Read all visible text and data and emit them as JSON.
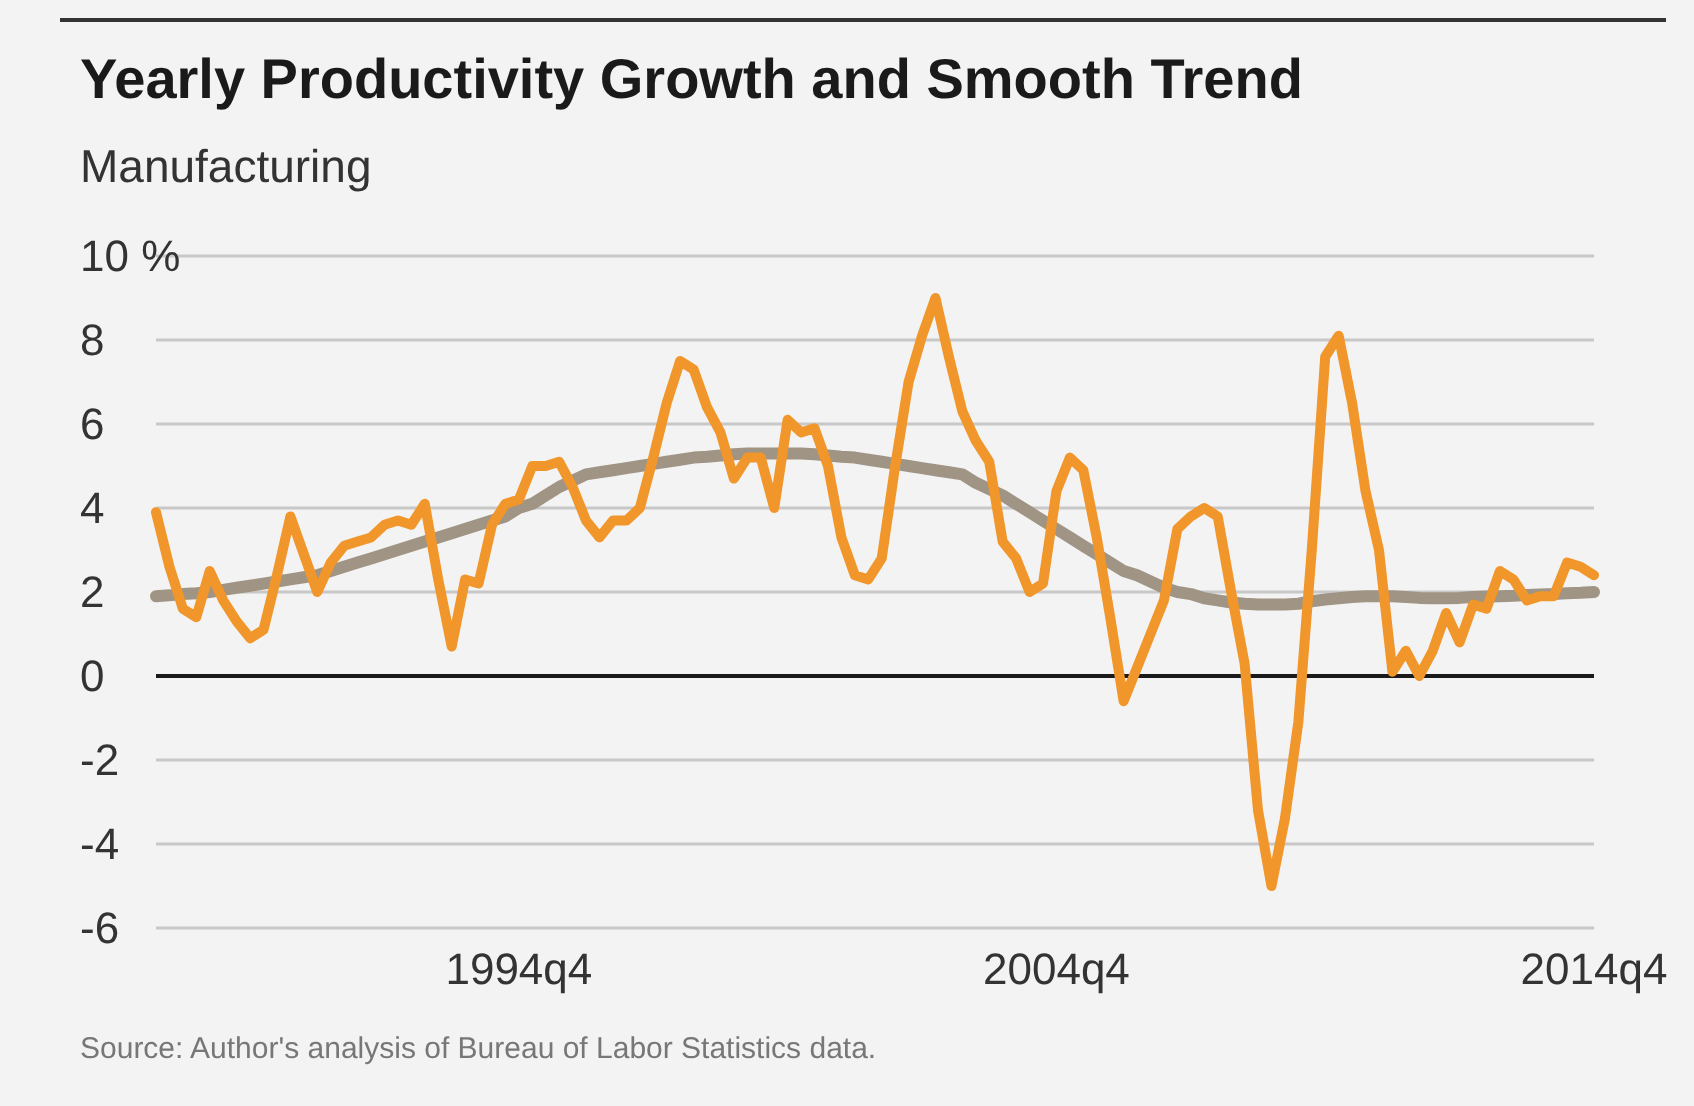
{
  "chart_data": {
    "type": "line",
    "title": "Yearly Productivity Growth and Smooth Trend",
    "subtitle": "Manufacturing",
    "annotations": [
      "Source: Author's analysis of Bureau of Labor Statistics data."
    ],
    "categories": [
      null,
      null,
      null,
      null,
      null,
      null,
      null,
      null,
      null,
      null,
      null,
      null,
      null,
      null,
      null,
      null,
      null,
      null,
      null,
      null,
      null,
      null,
      null,
      null,
      null,
      null,
      null,
      "1994q4",
      null,
      null,
      null,
      null,
      null,
      null,
      null,
      null,
      null,
      null,
      null,
      null,
      null,
      null,
      null,
      null,
      null,
      null,
      null,
      null,
      null,
      null,
      null,
      null,
      null,
      null,
      null,
      null,
      null,
      null,
      null,
      null,
      null,
      null,
      null,
      null,
      null,
      null,
      null,
      "2004q4",
      null,
      null,
      null,
      null,
      null,
      null,
      null,
      null,
      null,
      null,
      null,
      null,
      null,
      null,
      null,
      null,
      null,
      null,
      null,
      null,
      null,
      null,
      null,
      null,
      null,
      null,
      null,
      null,
      null,
      null,
      null,
      null,
      null,
      null,
      null,
      null,
      null,
      null,
      null,
      "2014q4"
    ],
    "ylim": [
      -6,
      10
    ],
    "yticks": [
      {
        "value": 10,
        "label": "10 %"
      },
      8,
      6,
      4,
      2,
      0,
      -2,
      -4,
      -6
    ],
    "grid": "y",
    "marker": "none",
    "line_style": "solid",
    "ref_lines": [
      {
        "axis": "y",
        "value": 0,
        "color": "#1a1a1a"
      }
    ],
    "series": [
      {
        "color": "#a09484",
        "values": [
          1.9,
          1.92,
          1.95,
          1.97,
          2.0,
          2.05,
          2.1,
          2.15,
          2.2,
          2.25,
          2.3,
          2.35,
          2.4,
          2.5,
          2.6,
          2.7,
          2.8,
          2.9,
          3.0,
          3.1,
          3.2,
          3.3,
          3.4,
          3.5,
          3.6,
          3.7,
          3.8,
          4.0,
          4.1,
          4.3,
          4.5,
          4.65,
          4.8,
          4.85,
          4.9,
          4.95,
          5.0,
          5.05,
          5.1,
          5.15,
          5.2,
          5.22,
          5.25,
          5.28,
          5.3,
          5.3,
          5.3,
          5.3,
          5.3,
          5.28,
          5.25,
          5.22,
          5.2,
          5.15,
          5.1,
          5.05,
          5.0,
          4.95,
          4.9,
          4.85,
          4.8,
          4.6,
          4.45,
          4.3,
          4.1,
          3.9,
          3.7,
          3.5,
          3.3,
          3.1,
          2.9,
          2.7,
          2.5,
          2.4,
          2.25,
          2.1,
          2.0,
          1.95,
          1.85,
          1.8,
          1.75,
          1.72,
          1.7,
          1.7,
          1.7,
          1.72,
          1.78,
          1.82,
          1.85,
          1.88,
          1.9,
          1.9,
          1.9,
          1.88,
          1.86,
          1.85,
          1.85,
          1.86,
          1.88,
          1.89,
          1.9,
          1.91,
          1.93,
          1.94,
          1.95,
          1.97,
          1.98,
          2.0
        ]
      },
      {
        "color": "#f0962a",
        "values": [
          3.9,
          2.6,
          1.6,
          1.4,
          2.5,
          1.8,
          1.3,
          0.9,
          1.1,
          2.4,
          3.8,
          2.9,
          2.0,
          2.7,
          3.1,
          3.2,
          3.3,
          3.6,
          3.7,
          3.6,
          4.1,
          2.3,
          0.7,
          2.3,
          2.2,
          3.6,
          4.1,
          4.2,
          5.0,
          5.0,
          5.1,
          4.5,
          3.7,
          3.3,
          3.7,
          3.7,
          4.0,
          5.2,
          6.5,
          7.5,
          7.3,
          6.4,
          5.8,
          4.7,
          5.2,
          5.2,
          4.0,
          6.1,
          5.8,
          5.9,
          5.0,
          3.3,
          2.4,
          2.3,
          2.8,
          5.0,
          7.0,
          8.1,
          9.0,
          7.6,
          6.3,
          5.6,
          5.1,
          3.2,
          2.8,
          2.0,
          2.2,
          4.4,
          5.2,
          4.9,
          3.3,
          1.4,
          -0.6,
          0.2,
          1.0,
          1.8,
          3.5,
          3.8,
          4.0,
          3.8,
          2.0,
          0.3,
          -3.2,
          -5.0,
          -3.4,
          -1.1,
          3.0,
          7.6,
          8.1,
          6.5,
          4.4,
          3.0,
          0.1,
          0.6,
          0.0,
          0.6,
          1.5,
          0.8,
          1.7,
          1.6,
          2.5,
          2.3,
          1.8,
          1.9,
          1.9,
          2.7,
          2.6,
          2.4
        ]
      }
    ]
  }
}
